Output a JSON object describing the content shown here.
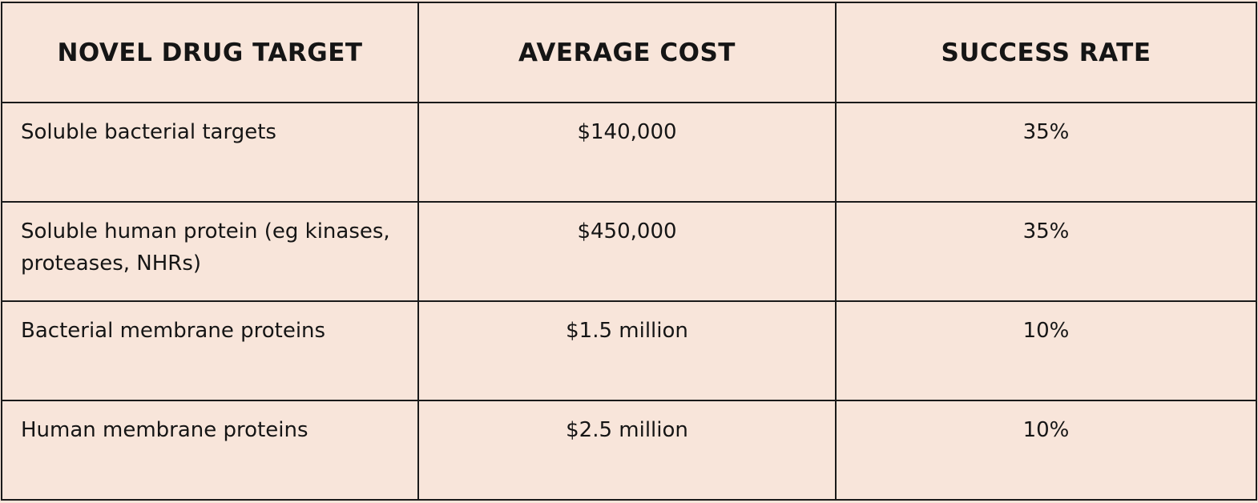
{
  "table": {
    "headers": {
      "target": "NOVEL DRUG TARGET",
      "cost": "AVERAGE COST",
      "rate": "SUCCESS RATE"
    },
    "rows": [
      {
        "target": "Soluble bacterial targets",
        "cost": "$140,000",
        "rate": "35%"
      },
      {
        "target": "Soluble human protein (eg kinases, proteases, NHRs)",
        "cost": "$450,000",
        "rate": "35%"
      },
      {
        "target": "Bacterial membrane proteins",
        "cost": "$1.5 million",
        "rate": "10%"
      },
      {
        "target": "Human membrane proteins",
        "cost": "$2.5 million",
        "rate": "10%"
      }
    ]
  },
  "colors": {
    "background": "#f8e5da",
    "border": "#1a1a1a",
    "text": "#151515"
  }
}
